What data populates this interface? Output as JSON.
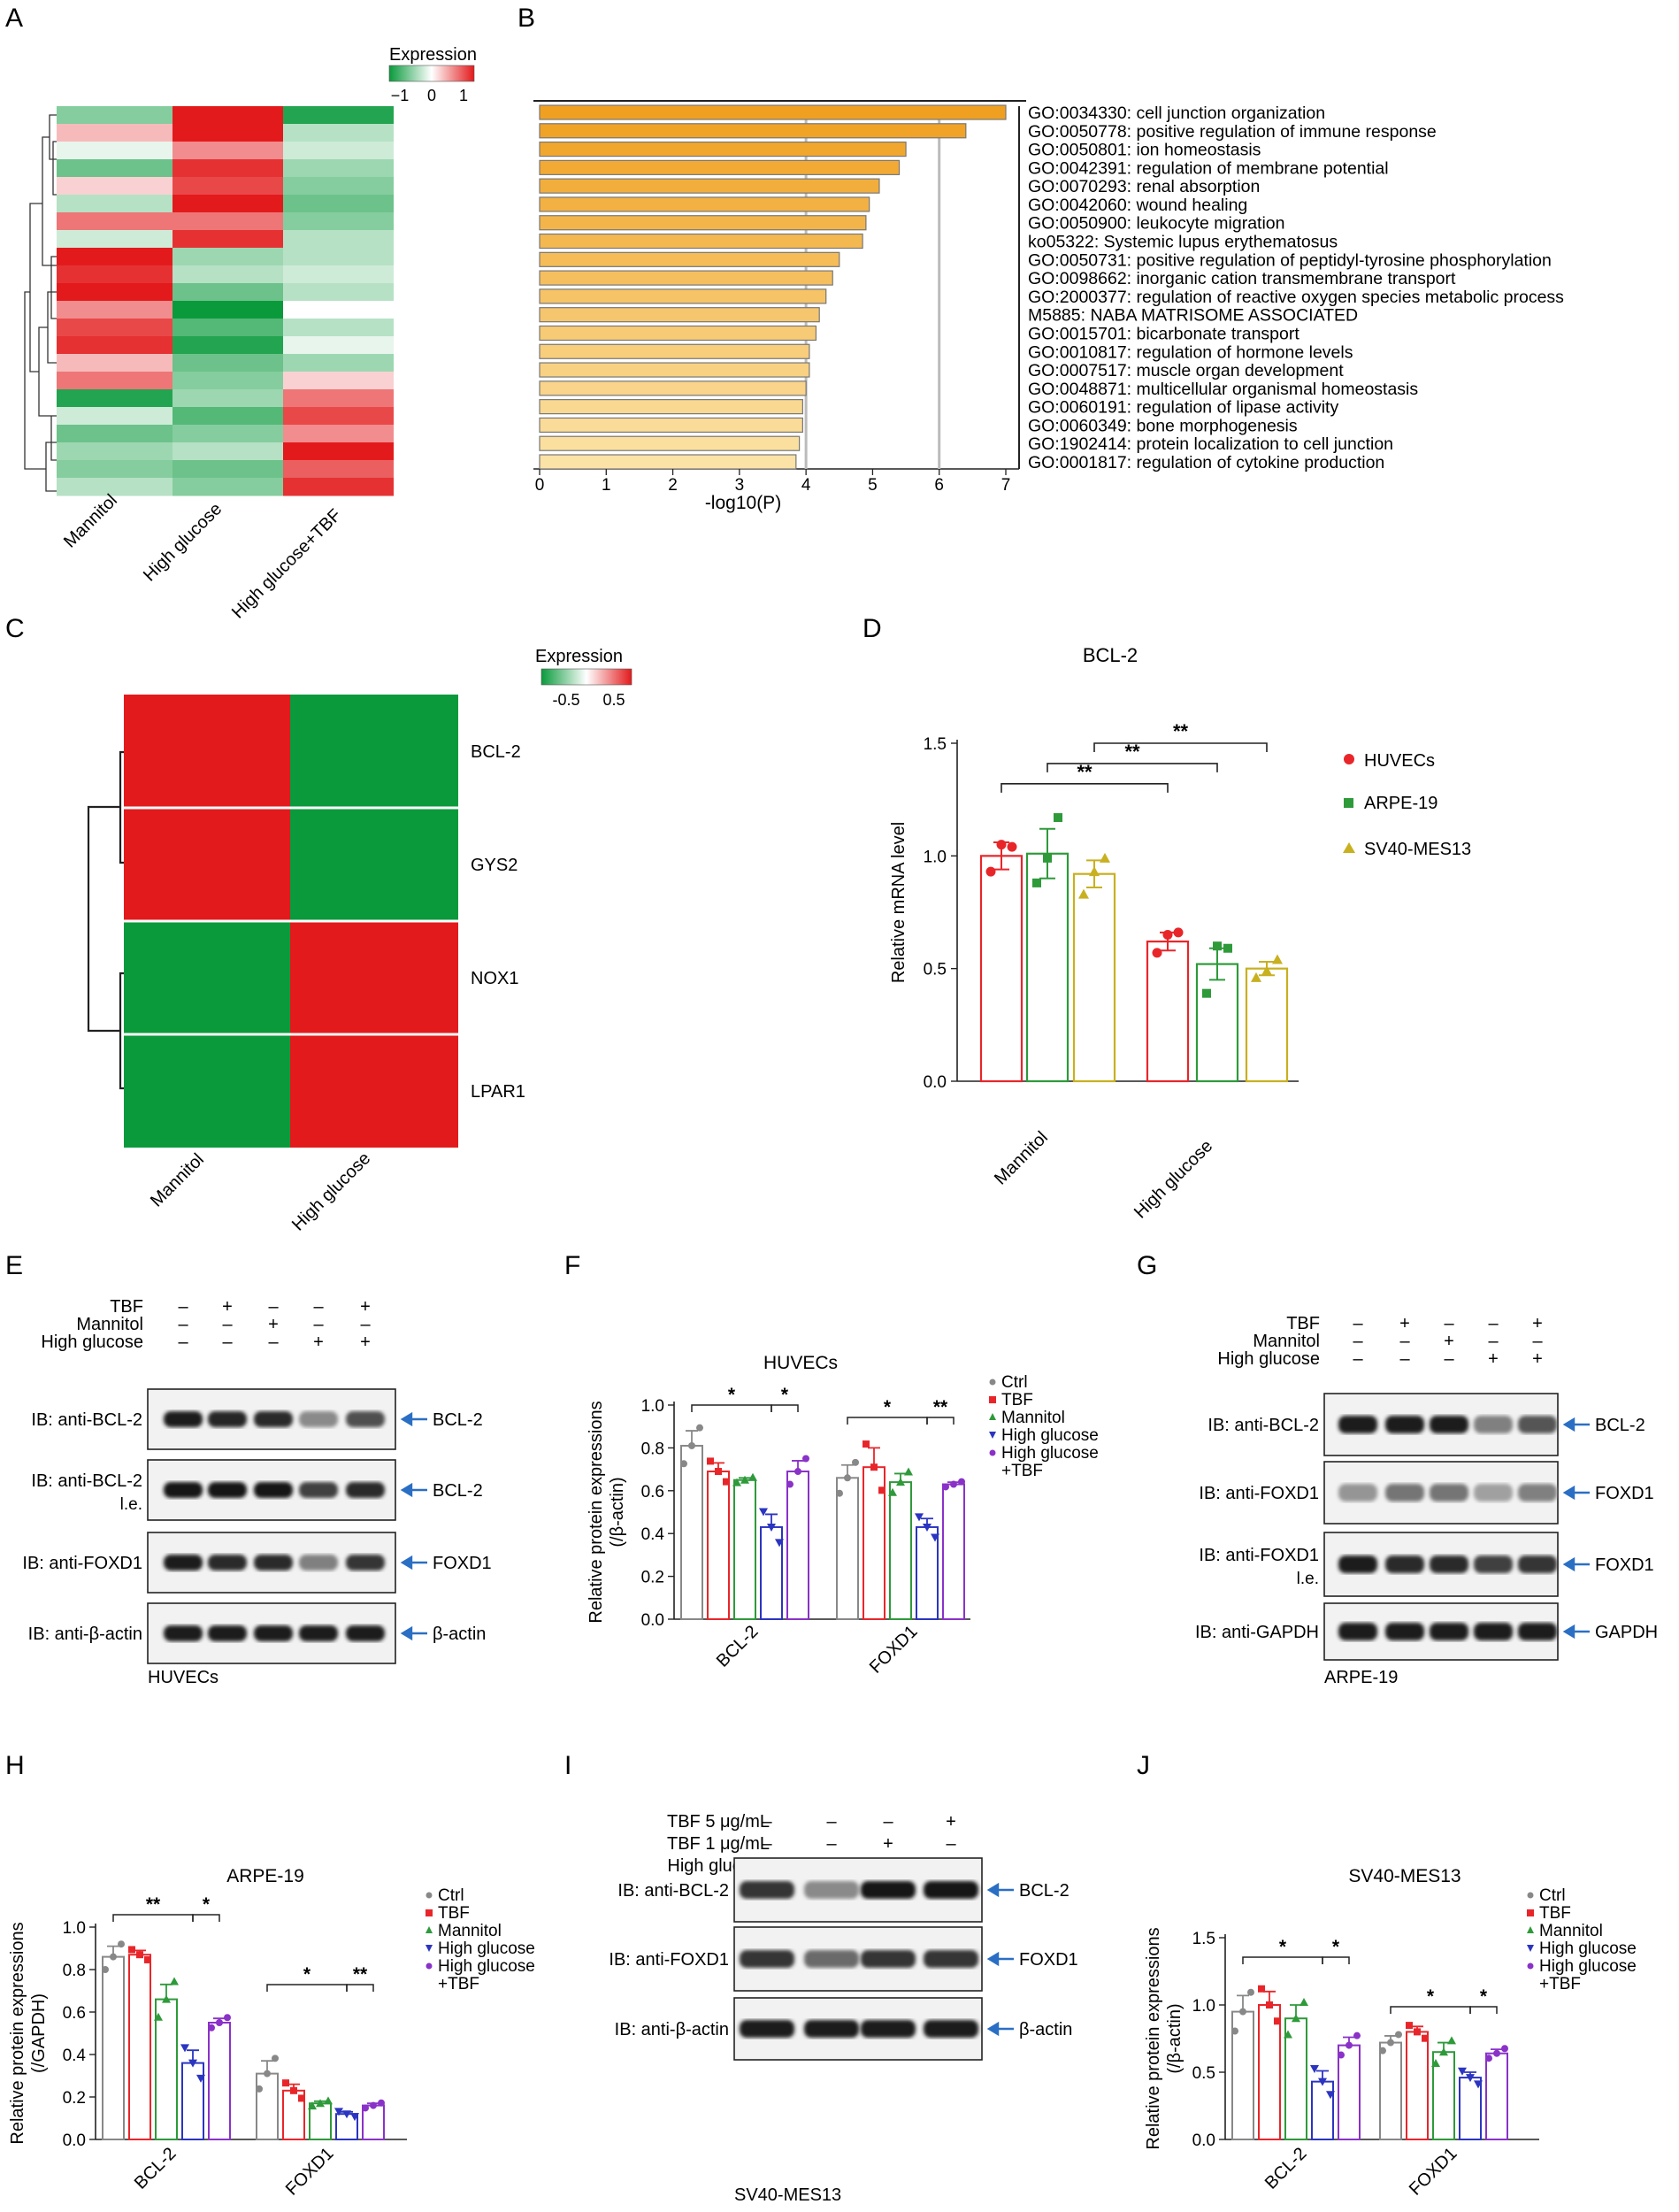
{
  "panel_letters": [
    "A",
    "B",
    "C",
    "D",
    "E",
    "F",
    "G",
    "H",
    "I",
    "J"
  ],
  "colors": {
    "green": "#0a9a3c",
    "red": "#e31a1c",
    "bar_orange_dark": "#f0a020",
    "bar_orange_light": "#fbe2a6",
    "Ctrl": "#888888",
    "TBF": "#e8262a",
    "Mannitol": "#2e9a3a",
    "High_glucose": "#2b35c0",
    "High_glucose_TBF": "#8a32c8",
    "HUVECs": "#e8262a",
    "ARPE19": "#2e9a3a",
    "SV40MES13": "#c8b020",
    "arrow": "#2a6fc4"
  },
  "panelA": {
    "legend_title": "Expression",
    "legend_ticks": [
      "−1",
      "0",
      "1"
    ],
    "columns": [
      "Mannitol",
      "High glucose",
      "High glucose+TBF"
    ],
    "heatmap_values": [
      [
        -0.5,
        1,
        -0.9
      ],
      [
        0.3,
        1,
        -0.3
      ],
      [
        -0.1,
        0.5,
        -0.2
      ],
      [
        -0.6,
        0.9,
        -0.4
      ],
      [
        0.2,
        0.8,
        -0.5
      ],
      [
        -0.3,
        1,
        -0.6
      ],
      [
        0.6,
        0.6,
        -0.5
      ],
      [
        -0.2,
        0.9,
        -0.3
      ],
      [
        1,
        -0.4,
        -0.3
      ],
      [
        0.9,
        -0.3,
        -0.2
      ],
      [
        1,
        -0.6,
        -0.3
      ],
      [
        0.5,
        -1,
        0
      ],
      [
        0.8,
        -0.7,
        -0.3
      ],
      [
        0.9,
        -0.9,
        -0.1
      ],
      [
        0.3,
        -0.6,
        -0.4
      ],
      [
        0.6,
        -0.5,
        0.2
      ],
      [
        -0.9,
        -0.4,
        0.6
      ],
      [
        -0.2,
        -0.7,
        0.8
      ],
      [
        -0.6,
        -0.5,
        0.5
      ],
      [
        -0.4,
        -0.3,
        1
      ],
      [
        -0.5,
        -0.6,
        0.7
      ],
      [
        -0.3,
        -0.5,
        0.9
      ]
    ]
  },
  "panelB": {
    "chart_data": {
      "type": "bar",
      "orientation": "horizontal",
      "xlabel": "-log10(P)",
      "xlim": [
        0,
        7
      ],
      "xticks": [
        "0",
        "1",
        "2",
        "3",
        "4",
        "5",
        "6",
        "7"
      ],
      "categories": [
        "GO:0034330: cell junction organization",
        "GO:0050778: positive regulation of immune response",
        "GO:0050801: ion homeostasis",
        "GO:0042391: regulation of membrane potential",
        "GO:0070293: renal absorption",
        "GO:0042060: wound healing",
        "GO:0050900: leukocyte migration",
        "ko05322: Systemic lupus erythematosus",
        "GO:0050731: positive regulation of peptidyl-tyrosine phosphorylation",
        "GO:0098662: inorganic cation transmembrane transport",
        "GO:2000377: regulation of reactive oxygen species metabolic process",
        "M5885: NABA MATRISOME ASSOCIATED",
        "GO:0015701: bicarbonate transport",
        "GO:0010817: regulation of hormone levels",
        "GO:0007517: muscle organ development",
        "GO:0048871: multicellular organismal homeostasis",
        "GO:0060191: regulation of lipase activity",
        "GO:0060349: bone morphogenesis",
        "GO:1902414: protein localization to cell junction",
        "GO:0001817: regulation of cytokine production"
      ],
      "values": [
        7.0,
        6.4,
        5.5,
        5.4,
        5.1,
        4.95,
        4.9,
        4.85,
        4.5,
        4.4,
        4.3,
        4.2,
        4.15,
        4.05,
        4.05,
        4.0,
        3.95,
        3.95,
        3.9,
        3.85
      ]
    }
  },
  "panelC": {
    "legend_title": "Expression",
    "legend_ticks": [
      "-0.5",
      "0.5"
    ],
    "rows": [
      "BCL-2",
      "GYS2",
      "NOX1",
      "LPAR1"
    ],
    "columns": [
      "Mannitol",
      "High glucose"
    ],
    "values": [
      [
        1,
        -1
      ],
      [
        1,
        -1
      ],
      [
        -1,
        1
      ],
      [
        -1,
        1
      ]
    ]
  },
  "panelD": {
    "chart_data": {
      "type": "bar",
      "title": "BCL-2",
      "ylabel": "Relative mRNA level",
      "ylim": [
        0,
        1.5
      ],
      "yticks": [
        "0.0",
        "0.5",
        "1.0",
        "1.5"
      ],
      "categories": [
        "Mannitol",
        "High glucose"
      ],
      "series": [
        {
          "name": "HUVECs",
          "values": [
            1.0,
            0.62
          ],
          "err": [
            0.06,
            0.04
          ],
          "points": [
            [
              0.93,
              1.05,
              1.04
            ],
            [
              0.57,
              0.65,
              0.66
            ]
          ]
        },
        {
          "name": "ARPE-19",
          "values": [
            1.01,
            0.52
          ],
          "err": [
            0.11,
            0.07
          ],
          "points": [
            [
              0.88,
              0.99,
              1.17
            ],
            [
              0.39,
              0.6,
              0.59
            ]
          ]
        },
        {
          "name": "SV40-MES13",
          "values": [
            0.92,
            0.5
          ],
          "err": [
            0.06,
            0.03
          ],
          "points": [
            [
              0.83,
              0.93,
              0.99
            ],
            [
              0.46,
              0.49,
              0.54
            ]
          ]
        }
      ],
      "significance": [
        "**",
        "**",
        "**"
      ]
    }
  },
  "panelE": {
    "row_labels": [
      "TBF",
      "Mannitol",
      "High glucose"
    ],
    "signs": [
      [
        "–",
        "+",
        "–",
        "–",
        "+"
      ],
      [
        "–",
        "–",
        "+",
        "–",
        "–"
      ],
      [
        "–",
        "–",
        "–",
        "+",
        "+"
      ]
    ],
    "blots": [
      {
        "ib": "IB: anti-BCL-2",
        "ib2": "",
        "band": "BCL-2",
        "intensity": [
          0.95,
          0.92,
          0.9,
          0.45,
          0.72
        ]
      },
      {
        "ib": "IB: anti-BCL-2",
        "ib2": "l.e.",
        "band": "BCL-2",
        "intensity": [
          1,
          1,
          1,
          0.8,
          0.9
        ]
      },
      {
        "ib": "IB: anti-FOXD1",
        "ib2": "",
        "band": "FOXD1",
        "intensity": [
          0.95,
          0.9,
          0.9,
          0.5,
          0.85
        ]
      },
      {
        "ib": "IB: anti-β-actin",
        "ib2": "",
        "band": "β-actin",
        "intensity": [
          0.95,
          0.95,
          0.95,
          0.95,
          0.95
        ]
      }
    ],
    "cell_line": "HUVECs"
  },
  "panelF": {
    "chart_data": {
      "type": "bar",
      "title": "HUVECs",
      "ylabel": "Relative protein expressions (/β-actin)",
      "ylabel_line1": "Relative protein expressions",
      "ylabel_line2": "(/β-actin)",
      "ylim": [
        0,
        1.0
      ],
      "yticks": [
        "0.0",
        "0.2",
        "0.4",
        "0.6",
        "0.8",
        "1.0"
      ],
      "categories": [
        "BCL-2",
        "FOXD1"
      ],
      "series": [
        {
          "name": "Ctrl",
          "values": [
            0.81,
            0.66
          ],
          "err": [
            0.07,
            0.06
          ]
        },
        {
          "name": "TBF",
          "values": [
            0.69,
            0.71
          ],
          "err": [
            0.04,
            0.09
          ]
        },
        {
          "name": "Mannitol",
          "values": [
            0.65,
            0.64
          ],
          "err": [
            0.01,
            0.04
          ]
        },
        {
          "name": "High glucose",
          "values": [
            0.43,
            0.43
          ],
          "err": [
            0.06,
            0.04
          ]
        },
        {
          "name": "High glucose +TBF",
          "values": [
            0.69,
            0.63
          ],
          "err": [
            0.05,
            0.01
          ]
        }
      ],
      "legend": [
        "Ctrl",
        "TBF",
        "Mannitol",
        "High glucose",
        "High glucose",
        "+TBF"
      ],
      "significance": [
        "*",
        "*",
        "*",
        "**"
      ]
    }
  },
  "panelG": {
    "row_labels": [
      "TBF",
      "Mannitol",
      "High glucose"
    ],
    "signs": [
      [
        "–",
        "+",
        "–",
        "–",
        "+"
      ],
      [
        "–",
        "–",
        "+",
        "–",
        "–"
      ],
      [
        "–",
        "–",
        "–",
        "+",
        "+"
      ]
    ],
    "blots": [
      {
        "ib": "IB: anti-BCL-2",
        "ib2": "",
        "band": "BCL-2",
        "intensity": [
          0.95,
          0.95,
          0.95,
          0.5,
          0.7
        ]
      },
      {
        "ib": "IB: anti-FOXD1",
        "ib2": "",
        "band": "FOXD1",
        "intensity": [
          0.4,
          0.55,
          0.55,
          0.35,
          0.5
        ]
      },
      {
        "ib": "IB: anti-FOXD1",
        "ib2": "l.e.",
        "band": "FOXD1",
        "intensity": [
          0.95,
          0.9,
          0.9,
          0.8,
          0.85
        ]
      },
      {
        "ib": "IB: anti-GAPDH",
        "ib2": "",
        "band": "GAPDH",
        "intensity": [
          0.95,
          0.95,
          0.95,
          0.95,
          0.95
        ]
      }
    ],
    "cell_line": "ARPE-19"
  },
  "panelH": {
    "chart_data": {
      "type": "bar",
      "title": "ARPE-19",
      "ylabel": "Relative protein expressions (/GAPDH)",
      "ylabel_line1": "Relative protein expressions",
      "ylabel_line2": "(/GAPDH)",
      "ylim": [
        0,
        1.0
      ],
      "yticks": [
        "0.0",
        "0.2",
        "0.4",
        "0.6",
        "0.8",
        "1.0"
      ],
      "categories": [
        "BCL-2",
        "FOXD1"
      ],
      "series": [
        {
          "name": "Ctrl",
          "values": [
            0.86,
            0.31
          ],
          "err": [
            0.05,
            0.06
          ]
        },
        {
          "name": "TBF",
          "values": [
            0.87,
            0.23
          ],
          "err": [
            0.02,
            0.03
          ]
        },
        {
          "name": "Mannitol",
          "values": [
            0.66,
            0.17
          ],
          "err": [
            0.07,
            0.01
          ]
        },
        {
          "name": "High glucose",
          "values": [
            0.36,
            0.12
          ],
          "err": [
            0.06,
            0.01
          ]
        },
        {
          "name": "High glucose +TBF",
          "values": [
            0.55,
            0.16
          ],
          "err": [
            0.02,
            0.01
          ]
        }
      ],
      "legend": [
        "Ctrl",
        "TBF",
        "Mannitol",
        "High glucose",
        "High glucose",
        "+TBF"
      ],
      "significance": [
        "**",
        "*",
        "*",
        "**"
      ]
    }
  },
  "panelI": {
    "row_labels": [
      "TBF 5 μg/mL",
      "TBF 1 μg/mL",
      "High glucose"
    ],
    "signs": [
      [
        "–",
        "–",
        "–",
        "+"
      ],
      [
        "–",
        "–",
        "+",
        "–"
      ],
      [
        "–",
        "+",
        "+",
        "+"
      ]
    ],
    "blots": [
      {
        "ib": "IB: anti-BCL-2",
        "ib2": "",
        "band": "BCL-2",
        "intensity": [
          0.85,
          0.45,
          1,
          1
        ]
      },
      {
        "ib": "IB: anti-FOXD1",
        "ib2": "",
        "band": "FOXD1",
        "intensity": [
          0.85,
          0.6,
          0.85,
          0.85
        ]
      },
      {
        "ib": "IB: anti-β-actin",
        "ib2": "",
        "band": "β-actin",
        "intensity": [
          0.95,
          0.95,
          0.95,
          0.95
        ]
      }
    ],
    "cell_line": "SV40-MES13"
  },
  "panelJ": {
    "chart_data": {
      "type": "bar",
      "title": "SV40-MES13",
      "ylabel": "Relative protein expressions (/β-actin)",
      "ylabel_line1": "Relative protein expressions",
      "ylabel_line2": "(/β-actin)",
      "ylim": [
        0,
        1.5
      ],
      "yticks": [
        "0.0",
        "0.5",
        "1.0",
        "1.5"
      ],
      "categories": [
        "BCL-2",
        "FOXD1"
      ],
      "series": [
        {
          "name": "Ctrl",
          "values": [
            0.95,
            0.72
          ],
          "err": [
            0.12,
            0.05
          ]
        },
        {
          "name": "TBF",
          "values": [
            1.0,
            0.8
          ],
          "err": [
            0.1,
            0.04
          ]
        },
        {
          "name": "Mannitol",
          "values": [
            0.9,
            0.65
          ],
          "err": [
            0.1,
            0.07
          ]
        },
        {
          "name": "High glucose",
          "values": [
            0.43,
            0.46
          ],
          "err": [
            0.08,
            0.04
          ]
        },
        {
          "name": "High glucose +TBF",
          "values": [
            0.7,
            0.64
          ],
          "err": [
            0.06,
            0.03
          ]
        }
      ],
      "legend": [
        "Ctrl",
        "TBF",
        "Mannitol",
        "High glucose",
        "High glucose",
        "+TBF"
      ],
      "significance": [
        "*",
        "*",
        "*",
        "*"
      ]
    }
  }
}
